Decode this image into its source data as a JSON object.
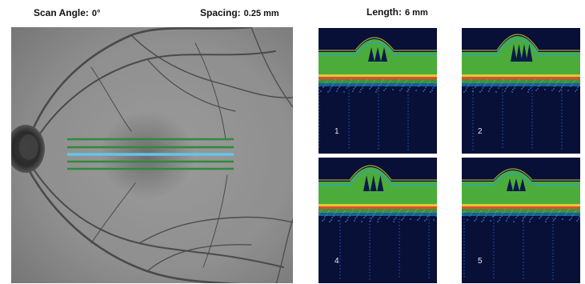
{
  "header": {
    "scan_angle_label": "Scan Angle:",
    "scan_angle_value": "0°",
    "spacing_label": "Spacing:",
    "spacing_value": "0.25 mm",
    "length_label": "Length:",
    "length_value": "6 mm"
  },
  "scan_lines": {
    "colors": {
      "outer": "#2e8a3a",
      "center": "#5ec8e8"
    },
    "count": 5
  },
  "bscans": [
    {
      "number": "1"
    },
    {
      "number": "2"
    },
    {
      "number": "4"
    },
    {
      "number": "5"
    }
  ],
  "colors": {
    "bscan_background": "#081038",
    "retina_green": "#58c83a",
    "rpe_red": "#e84a2a",
    "rpe_yellow": "#f0e03a",
    "fundus_gray": "#8f8f8f"
  }
}
